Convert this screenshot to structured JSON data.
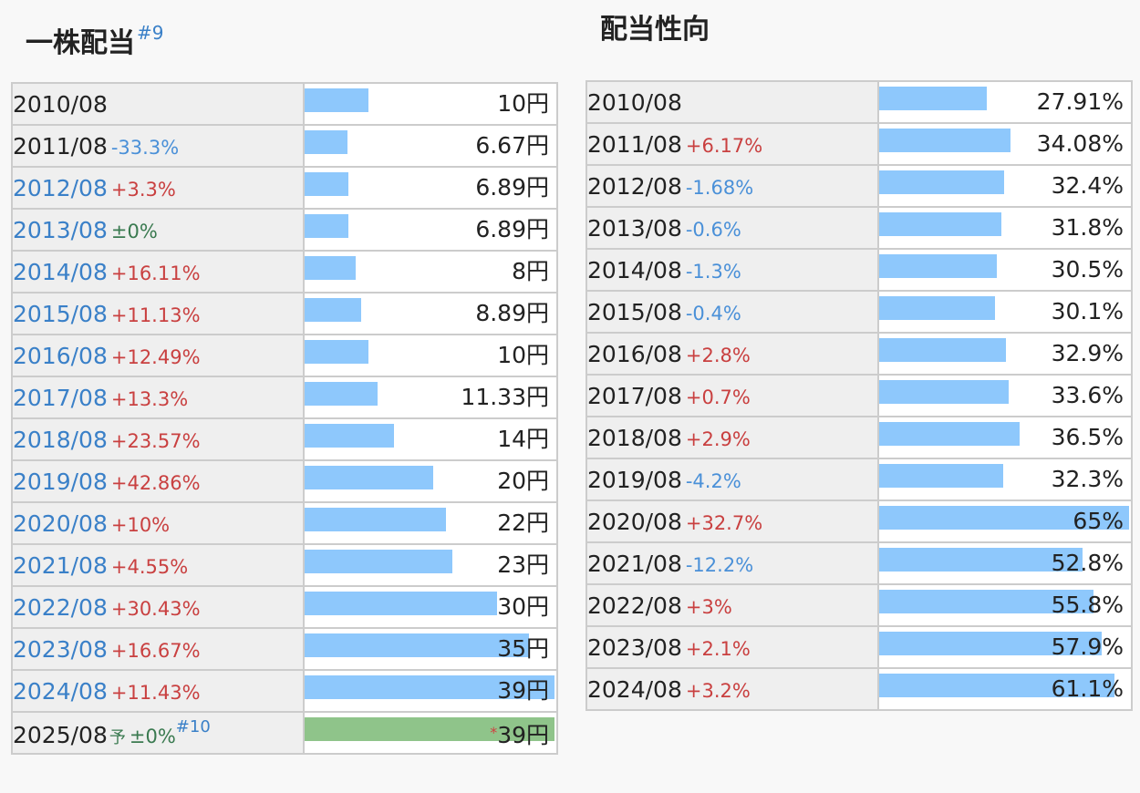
{
  "chart_data": [
    {
      "type": "bar",
      "title": "一株配当",
      "title_note": "#9",
      "unit": "円",
      "xmax": 39,
      "rows": [
        {
          "date": "2010/08",
          "change": "",
          "value": 10,
          "value_label": "10円",
          "date_color": "black"
        },
        {
          "date": "2011/08",
          "change": "-33.3%",
          "value": 6.67,
          "value_label": "6.67円",
          "date_color": "black"
        },
        {
          "date": "2012/08",
          "change": "+3.3%",
          "value": 6.89,
          "value_label": "6.89円",
          "date_color": "blue"
        },
        {
          "date": "2013/08",
          "change": "±0%",
          "value": 6.89,
          "value_label": "6.89円",
          "date_color": "blue"
        },
        {
          "date": "2014/08",
          "change": "+16.11%",
          "value": 8,
          "value_label": "8円",
          "date_color": "blue"
        },
        {
          "date": "2015/08",
          "change": "+11.13%",
          "value": 8.89,
          "value_label": "8.89円",
          "date_color": "blue"
        },
        {
          "date": "2016/08",
          "change": "+12.49%",
          "value": 10,
          "value_label": "10円",
          "date_color": "blue"
        },
        {
          "date": "2017/08",
          "change": "+13.3%",
          "value": 11.33,
          "value_label": "11.33円",
          "date_color": "blue"
        },
        {
          "date": "2018/08",
          "change": "+23.57%",
          "value": 14,
          "value_label": "14円",
          "date_color": "blue"
        },
        {
          "date": "2019/08",
          "change": "+42.86%",
          "value": 20,
          "value_label": "20円",
          "date_color": "blue"
        },
        {
          "date": "2020/08",
          "change": "+10%",
          "value": 22,
          "value_label": "22円",
          "date_color": "blue"
        },
        {
          "date": "2021/08",
          "change": "+4.55%",
          "value": 23,
          "value_label": "23円",
          "date_color": "blue"
        },
        {
          "date": "2022/08",
          "change": "+30.43%",
          "value": 30,
          "value_label": "30円",
          "date_color": "blue"
        },
        {
          "date": "2023/08",
          "change": "+16.67%",
          "value": 35,
          "value_label": "35円",
          "date_color": "blue"
        },
        {
          "date": "2024/08",
          "change": "+11.43%",
          "value": 39,
          "value_label": "39円",
          "date_color": "blue"
        },
        {
          "date": "2025/08",
          "forecast_mark": "予",
          "change": "±0%",
          "note": "#10",
          "value": 39,
          "value_label": "39円",
          "star": "*",
          "date_color": "black",
          "forecast": true
        }
      ]
    },
    {
      "type": "bar",
      "title": "配当性向",
      "unit": "%",
      "xmax": 65,
      "rows": [
        {
          "date": "2010/08",
          "change": "",
          "value": 27.91,
          "value_label": "27.91%"
        },
        {
          "date": "2011/08",
          "change": "+6.17%",
          "value": 34.08,
          "value_label": "34.08%"
        },
        {
          "date": "2012/08",
          "change": "-1.68%",
          "value": 32.4,
          "value_label": "32.4%"
        },
        {
          "date": "2013/08",
          "change": "-0.6%",
          "value": 31.8,
          "value_label": "31.8%"
        },
        {
          "date": "2014/08",
          "change": "-1.3%",
          "value": 30.5,
          "value_label": "30.5%"
        },
        {
          "date": "2015/08",
          "change": "-0.4%",
          "value": 30.1,
          "value_label": "30.1%"
        },
        {
          "date": "2016/08",
          "change": "+2.8%",
          "value": 32.9,
          "value_label": "32.9%"
        },
        {
          "date": "2017/08",
          "change": "+0.7%",
          "value": 33.6,
          "value_label": "33.6%"
        },
        {
          "date": "2018/08",
          "change": "+2.9%",
          "value": 36.5,
          "value_label": "36.5%"
        },
        {
          "date": "2019/08",
          "change": "-4.2%",
          "value": 32.3,
          "value_label": "32.3%"
        },
        {
          "date": "2020/08",
          "change": "+32.7%",
          "value": 65,
          "value_label": "65%"
        },
        {
          "date": "2021/08",
          "change": "-12.2%",
          "value": 52.8,
          "value_label": "52.8%"
        },
        {
          "date": "2022/08",
          "change": "+3%",
          "value": 55.8,
          "value_label": "55.8%"
        },
        {
          "date": "2023/08",
          "change": "+2.1%",
          "value": 57.9,
          "value_label": "57.9%"
        },
        {
          "date": "2024/08",
          "change": "+3.2%",
          "value": 61.1,
          "value_label": "61.1%"
        }
      ]
    }
  ],
  "colors": {
    "bar": "#8ec8fc",
    "forecast_bar": "#8fc48a",
    "up": "#c94040",
    "down": "#4a90d8",
    "flat": "#3a7a50",
    "link": "#3a80c8"
  }
}
